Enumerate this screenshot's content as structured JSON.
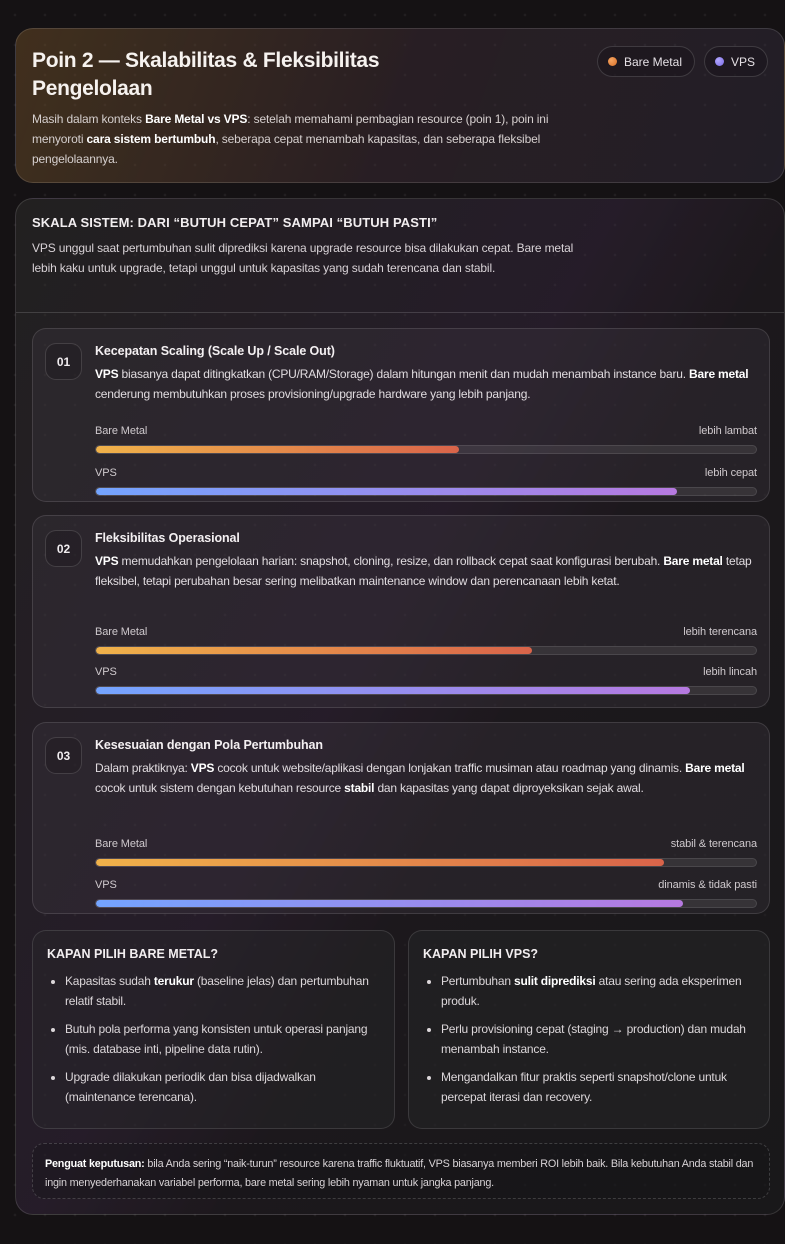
{
  "colors": {
    "bare_metal": "#e0843c",
    "vps": "#8c7cf0"
  },
  "header": {
    "title": "Poin 2 — Skalabilitas & Fleksibilitas Pengelolaan",
    "intro": [
      {
        "t": "Masih dalam konteks "
      },
      {
        "t": "Bare Metal vs VPS",
        "b": true
      },
      {
        "t": ": setelah memahami pembagian resource (poin 1), poin ini menyoroti "
      },
      {
        "t": "cara sistem bertumbuh",
        "b": true
      },
      {
        "t": ", seberapa cepat menambah kapasitas, dan seberapa fleksibel pengelolaannya."
      }
    ],
    "legend": [
      {
        "label": "Bare Metal",
        "icon": "orange-dot-icon"
      },
      {
        "label": "VPS",
        "icon": "purple-dot-icon"
      }
    ]
  },
  "section": {
    "title": "SKALA SISTEM: DARI “BUTUH CEPAT” SAMPAI “BUTUH PASTI”",
    "description": "VPS unggul saat pertumbuhan sulit diprediksi karena upgrade resource bisa dilakukan cepat. Bare metal lebih kaku untuk upgrade, tetapi unggul untuk kapasitas yang sudah terencana dan stabil.",
    "items": [
      {
        "num": "01",
        "title": "Kecepatan Scaling (Scale Up / Scale Out)",
        "text": [
          {
            "t": "VPS",
            "b": true
          },
          {
            "t": " biasanya dapat ditingkatkan (CPU/RAM/Storage) dalam hitungan menit dan mudah menambah instance baru. "
          },
          {
            "t": "Bare metal",
            "b": true
          },
          {
            "t": " cenderung membutuhkan proses provisioning/upgrade hardware yang lebih panjang."
          }
        ],
        "bars": [
          {
            "label": "Bare Metal",
            "note": "lebih lambat",
            "percent": 55
          },
          {
            "label": "VPS",
            "note": "lebih cepat",
            "percent": 88
          }
        ]
      },
      {
        "num": "02",
        "title": "Fleksibilitas Operasional",
        "text": [
          {
            "t": "VPS",
            "b": true
          },
          {
            "t": " memudahkan pengelolaan harian: snapshot, cloning, resize, dan rollback cepat saat konfigurasi berubah. "
          },
          {
            "t": "Bare metal",
            "b": true
          },
          {
            "t": " tetap fleksibel, tetapi perubahan besar sering melibatkan maintenance window dan perencanaan lebih ketat."
          }
        ],
        "bars": [
          {
            "label": "Bare Metal",
            "note": "lebih terencana",
            "percent": 66
          },
          {
            "label": "VPS",
            "note": "lebih lincah",
            "percent": 90
          }
        ]
      },
      {
        "num": "03",
        "title": "Kesesuaian dengan Pola Pertumbuhan",
        "text": [
          {
            "t": "Dalam praktiknya: "
          },
          {
            "t": "VPS",
            "b": true
          },
          {
            "t": " cocok untuk website/aplikasi dengan lonjakan traffic musiman atau roadmap yang dinamis. "
          },
          {
            "t": "Bare metal",
            "b": true
          },
          {
            "t": " cocok untuk sistem dengan kebutuhan resource "
          },
          {
            "t": "stabil",
            "b": true
          },
          {
            "t": " dan kapasitas yang dapat diproyeksikan sejak awal."
          }
        ],
        "bars": [
          {
            "label": "Bare Metal",
            "note": "stabil & terencana",
            "percent": 86
          },
          {
            "label": "VPS",
            "note": "dinamis & tidak pasti",
            "percent": 89
          }
        ]
      }
    ],
    "choose": [
      {
        "title": "KAPAN PILIH BARE METAL?",
        "points": [
          [
            {
              "t": "Kapasitas sudah "
            },
            {
              "t": "terukur",
              "b": true
            },
            {
              "t": " (baseline jelas) dan pertumbuhan relatif stabil."
            }
          ],
          [
            {
              "t": "Butuh pola performa yang konsisten untuk operasi panjang (mis. database inti, pipeline data rutin)."
            }
          ],
          [
            {
              "t": "Upgrade dilakukan periodik dan bisa dijadwalkan (maintenance terencana)."
            }
          ]
        ]
      },
      {
        "title": "KAPAN PILIH VPS?",
        "points": [
          [
            {
              "t": "Pertumbuhan "
            },
            {
              "t": "sulit diprediksi",
              "b": true
            },
            {
              "t": " atau sering ada eksperimen produk."
            }
          ],
          [
            {
              "t": "Perlu provisioning cepat (staging → production) dan mudah menambah instance."
            }
          ],
          [
            {
              "t": "Mengandalkan fitur praktis seperti snapshot/clone untuk percepat iterasi dan recovery."
            }
          ]
        ]
      }
    ],
    "note": [
      {
        "t": "Penguat keputusan:",
        "b": true
      },
      {
        "t": " bila Anda sering “naik-turun” resource karena traffic fluktuatif, VPS biasanya memberi ROI lebih baik. Bila kebutuhan Anda stabil dan ingin menyederhanakan variabel performa, bare metal sering lebih nyaman untuk jangka panjang."
      }
    ]
  }
}
